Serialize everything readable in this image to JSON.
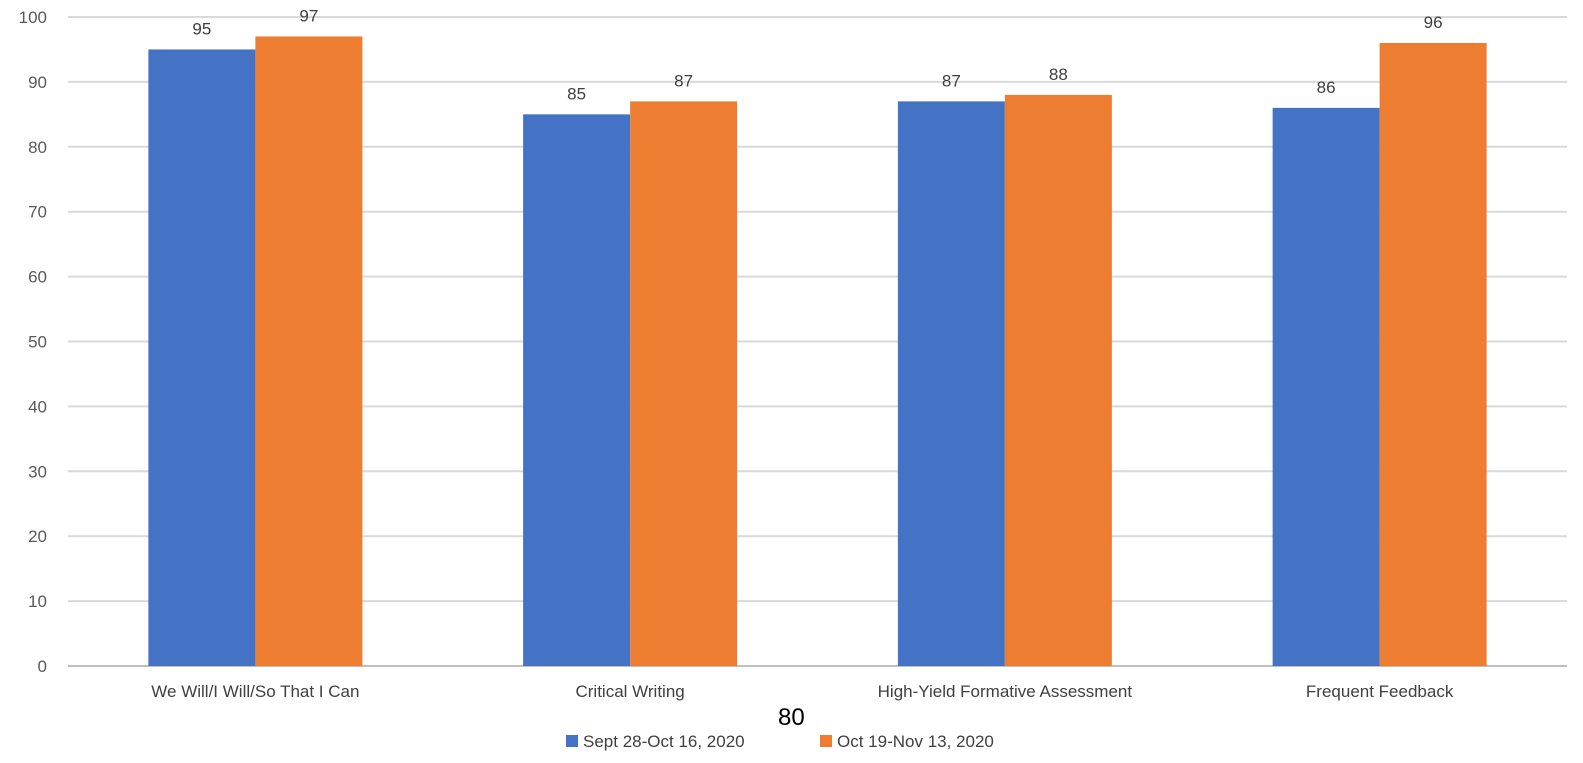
{
  "page": {
    "page_number": "80"
  },
  "colors": {
    "series_1": "#4472C4",
    "series_2": "#ED7D31",
    "gridline": "#D9D9D9",
    "axis_text": "#595959"
  },
  "chart_data": {
    "type": "bar",
    "title": "",
    "xlabel": "",
    "ylabel": "",
    "ylim": [
      0,
      100
    ],
    "yticks": [
      0,
      10,
      20,
      30,
      40,
      50,
      60,
      70,
      80,
      90,
      100
    ],
    "grid": true,
    "legend_position": "bottom-center",
    "categories": [
      "We Will/I Will/So That I Can",
      "Critical Writing",
      "High-Yield Formative Assessment",
      "Frequent Feedback"
    ],
    "series": [
      {
        "name": "Sept 28-Oct 16, 2020",
        "values": [
          95,
          85,
          87,
          86
        ]
      },
      {
        "name": "Oct 19-Nov 13, 2020",
        "values": [
          97,
          87,
          88,
          96
        ]
      }
    ]
  }
}
